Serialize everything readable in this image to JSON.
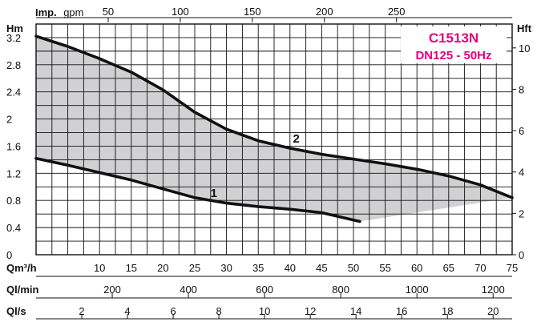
{
  "chart_data": {
    "type": "line",
    "title": "C1513N",
    "subtitle": "DN125 - 50Hz",
    "x_unit": "Qm³/h",
    "y_unit": "Hm",
    "xlim": [
      0,
      75
    ],
    "ylim": [
      0,
      3.4
    ],
    "x_ticks": [
      10,
      15,
      20,
      25,
      30,
      35,
      40,
      45,
      50,
      55,
      60,
      65,
      70,
      75
    ],
    "y_ticks": [
      0,
      0.4,
      0.8,
      1.2,
      1.6,
      2,
      2.4,
      2.8,
      3.2
    ],
    "y_tick_labels": [
      "0",
      "0.4",
      "0.8",
      "1.2",
      "1.6",
      "2",
      "2.4",
      "2.8",
      "3.2"
    ],
    "grid": true,
    "top_axis": {
      "label_bold": "Imp.",
      "label_unit": "gpm",
      "ticks": [
        50,
        100,
        150,
        200,
        250
      ],
      "tick_labels": [
        "50",
        "100",
        "150",
        "200",
        "250"
      ],
      "factor": 4.403
    },
    "right_axis": {
      "label": "Hft",
      "ticks": [
        0,
        2,
        4,
        6,
        8,
        10
      ],
      "tick_labels": [
        "0",
        "2",
        "4",
        "6",
        "8",
        "10"
      ],
      "factor": 3.2808
    },
    "bottom_axes": [
      {
        "label": "Ql/min",
        "ticks": [
          200,
          400,
          600,
          800,
          1000,
          1200
        ],
        "tick_labels": [
          "200",
          "400",
          "600",
          "800",
          "1000",
          "1200"
        ],
        "factor": 16.667
      },
      {
        "label": "Ql/s",
        "ticks": [
          2,
          4,
          6,
          8,
          10,
          12,
          14,
          16,
          18,
          20
        ],
        "tick_labels": [
          "2",
          "4",
          "6",
          "8",
          "10",
          "12",
          "14",
          "16",
          "18",
          "20"
        ],
        "factor": 0.27778
      }
    ],
    "series": [
      {
        "name": "2",
        "x": [
          0,
          5,
          10,
          15,
          20,
          25,
          30,
          35,
          40,
          45,
          50,
          55,
          60,
          65,
          70,
          75
        ],
        "y": [
          3.22,
          3.07,
          2.89,
          2.69,
          2.43,
          2.1,
          1.85,
          1.68,
          1.57,
          1.48,
          1.41,
          1.34,
          1.26,
          1.16,
          1.03,
          0.84
        ]
      },
      {
        "name": "1",
        "x": [
          0,
          5,
          10,
          15,
          20,
          25,
          30,
          35,
          40,
          45,
          51
        ],
        "y": [
          1.42,
          1.32,
          1.21,
          1.1,
          0.97,
          0.84,
          0.76,
          0.71,
          0.67,
          0.62,
          0.49
        ]
      }
    ],
    "shaded_area": "between curves",
    "colors": {
      "fill": "#d1d1d3",
      "curve": "#111111",
      "grid": "#111111",
      "title": "#e6007e"
    }
  }
}
